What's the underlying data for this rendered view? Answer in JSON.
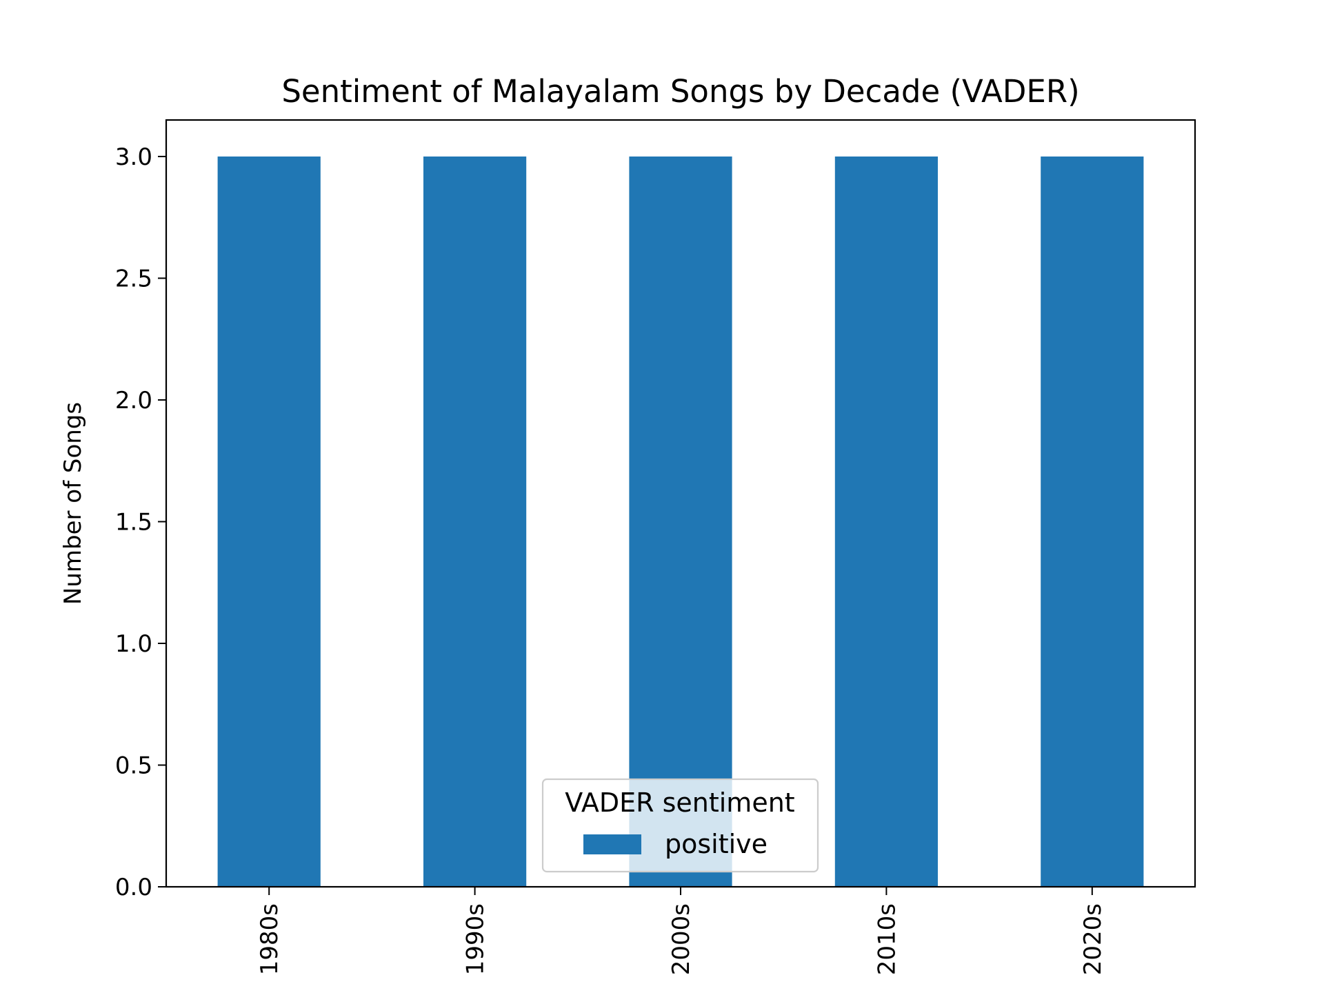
{
  "chart_data": {
    "type": "bar",
    "title": "Sentiment of Malayalam Songs by Decade (VADER)",
    "xlabel": "",
    "ylabel": "Number of Songs",
    "categories": [
      "1980s",
      "1990s",
      "2000s",
      "2010s",
      "2020s"
    ],
    "series": [
      {
        "name": "positive",
        "values": [
          3,
          3,
          3,
          3,
          3
        ],
        "color": "#2077b4"
      }
    ],
    "ylim": [
      0,
      3.15
    ],
    "yticks": [
      0.0,
      0.5,
      1.0,
      1.5,
      2.0,
      2.5,
      3.0
    ],
    "ytick_labels": [
      "0.0",
      "0.5",
      "1.0",
      "1.5",
      "2.0",
      "2.5",
      "3.0"
    ],
    "grid": false,
    "legend": {
      "title": "VADER sentiment",
      "placement": "lower center"
    },
    "xtick_rotation": "vertical"
  }
}
